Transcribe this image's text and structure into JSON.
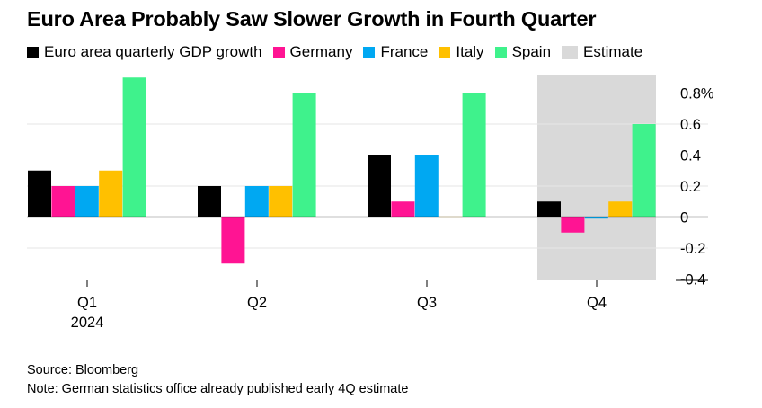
{
  "title": "Euro Area Probably Saw Slower Growth in Fourth Quarter",
  "legend": {
    "euro_area": "Euro area quarterly GDP growth",
    "germany": "Germany",
    "france": "France",
    "italy": "Italy",
    "spain": "Spain",
    "estimate": "Estimate"
  },
  "colors": {
    "euro_area": "#000000",
    "germany": "#ff1493",
    "france": "#00a8f2",
    "italy": "#ffc000",
    "spain": "#3ff28c",
    "estimate": "#d9d9d9",
    "axis": "#000000",
    "grid": "#e6e6e6"
  },
  "chart_data": {
    "type": "bar",
    "categories": [
      "Q1",
      "Q2",
      "Q3",
      "Q4"
    ],
    "category_sublabels": [
      "2024",
      "",
      "",
      ""
    ],
    "series": [
      {
        "name": "Euro area quarterly GDP growth",
        "key": "euro_area",
        "values": [
          0.3,
          0.2,
          0.4,
          0.1
        ]
      },
      {
        "name": "Germany",
        "key": "germany",
        "values": [
          0.2,
          -0.3,
          0.1,
          -0.1
        ]
      },
      {
        "name": "France",
        "key": "france",
        "values": [
          0.2,
          0.2,
          0.4,
          -0.01
        ]
      },
      {
        "name": "Italy",
        "key": "italy",
        "values": [
          0.3,
          0.2,
          0.0,
          0.1
        ]
      },
      {
        "name": "Spain",
        "key": "spain",
        "values": [
          0.9,
          0.8,
          0.8,
          0.6
        ]
      }
    ],
    "estimate_category": "Q4",
    "y_ticks": [
      0.8,
      0.6,
      0.4,
      0.2,
      0,
      -0.2,
      -0.4
    ],
    "y_tick_labels": [
      "0.8%",
      "0.6",
      "0.4",
      "0.2",
      "0",
      "-0.2",
      "-0.4"
    ],
    "ylim": [
      -0.4,
      0.9
    ],
    "grid": true,
    "legend_position": "top-left"
  },
  "source": "Source: Bloomberg",
  "note": "Note: German statistics office already published early 4Q estimate"
}
